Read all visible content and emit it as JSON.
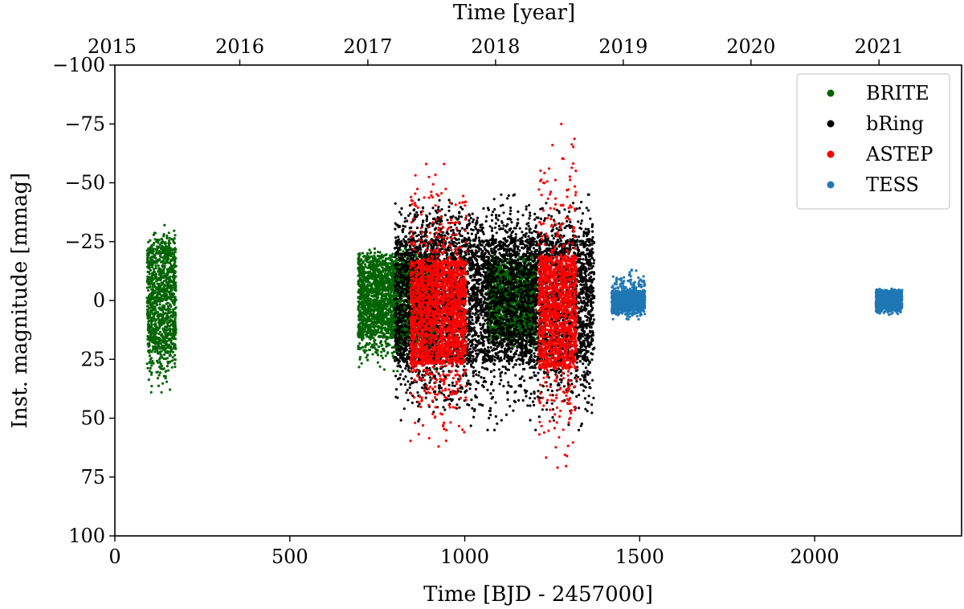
{
  "chart_data": {
    "type": "scatter",
    "xlabel": "Time [BJD - 2457000]",
    "ylabel": "Inst. magnitude [mmag]",
    "top_xlabel": "Time [year]",
    "xlim": [
      0,
      2420
    ],
    "ylim": [
      -100,
      100
    ],
    "y_inverted": true,
    "x_ticks": [
      0,
      500,
      1000,
      1500,
      2000
    ],
    "y_ticks": [
      -100,
      -75,
      -50,
      -25,
      0,
      25,
      50,
      75,
      100
    ],
    "top_x_ticks": [
      {
        "label": "2015",
        "x": -8
      },
      {
        "label": "2016",
        "x": 357
      },
      {
        "label": "2017",
        "x": 723
      },
      {
        "label": "2018",
        "x": 1088
      },
      {
        "label": "2019",
        "x": 1453
      },
      {
        "label": "2020",
        "x": 1818
      },
      {
        "label": "2021",
        "x": 2184
      }
    ],
    "legend_position": "top-right",
    "series": [
      {
        "name": "BRITE",
        "color": "#006400",
        "segments": [
          {
            "x0": 92,
            "x1": 175,
            "center": 0,
            "core_half": 22,
            "max_pos": 39,
            "max_neg": -32
          },
          {
            "x0": 695,
            "x1": 920,
            "center": 0,
            "core_half": 16,
            "max_pos": 30,
            "max_neg": -22
          },
          {
            "x0": 1065,
            "x1": 1205,
            "center": 0,
            "core_half": 14,
            "max_pos": 20,
            "max_neg": -20
          }
        ]
      },
      {
        "name": "bRing",
        "color": "#000000",
        "segments": [
          {
            "x0": 800,
            "x1": 1370,
            "center": 0,
            "core_half": 26,
            "max_pos": 55,
            "max_neg": -45
          }
        ]
      },
      {
        "name": "ASTEP",
        "color": "#ff0000",
        "segments": [
          {
            "x0": 845,
            "x1": 1005,
            "center": 5,
            "core_half": 22,
            "max_pos": 62,
            "max_neg": -58
          },
          {
            "x0": 1210,
            "x1": 1320,
            "center": 5,
            "core_half": 24,
            "max_pos": 71,
            "max_neg": -75
          }
        ]
      },
      {
        "name": "TESS",
        "color": "#1f77b4",
        "segments": [
          {
            "x0": 1420,
            "x1": 1515,
            "center": 0,
            "core_half": 4,
            "max_pos": 8,
            "max_neg": -13
          },
          {
            "x0": 2175,
            "x1": 2250,
            "center": 0,
            "core_half": 3.5,
            "max_pos": 6,
            "max_neg": -5
          }
        ]
      }
    ]
  }
}
